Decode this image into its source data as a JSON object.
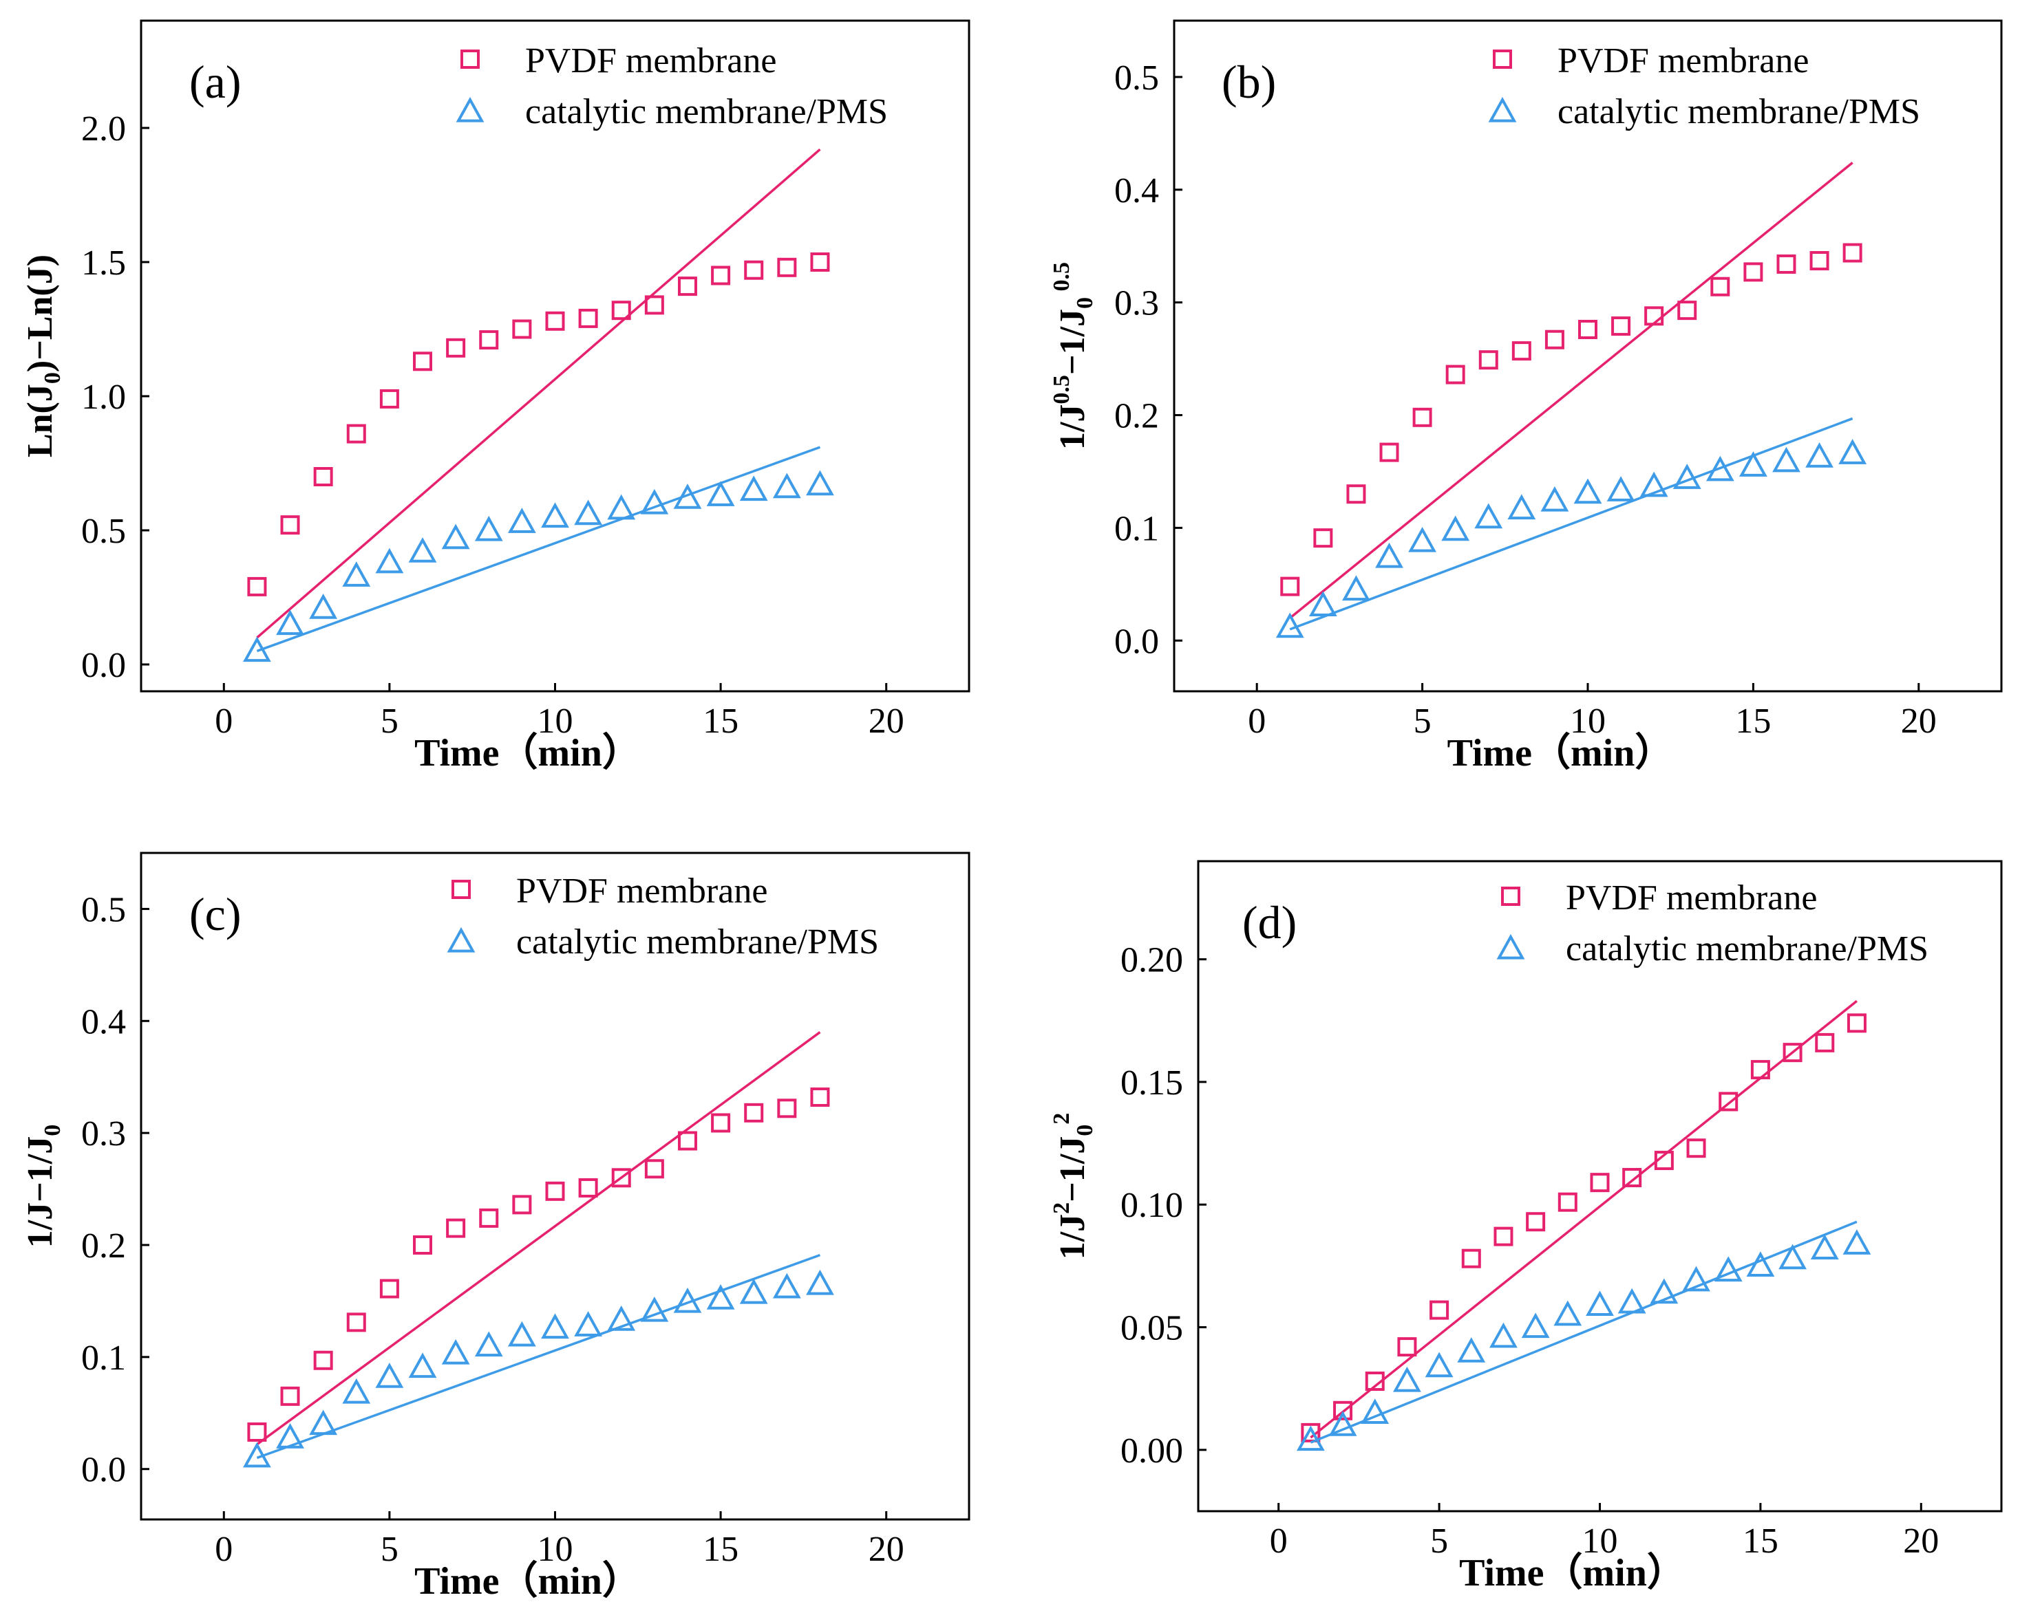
{
  "colors": {
    "pvdf": "#E6226E",
    "catalytic": "#3E9BE8"
  },
  "chart_data": [
    {
      "type": "scatter",
      "panel_label": "(a)",
      "xlabel": "Time（min）",
      "ylabel": "Ln(J0)−Ln(J)",
      "xlim": [
        -2.5,
        22.5
      ],
      "ylim": [
        -0.1,
        2.4
      ],
      "xticks": [
        "0",
        "5",
        "10",
        "15",
        "20"
      ],
      "yticks": [
        "0.0",
        "0.5",
        "1.0",
        "1.5",
        "2.0"
      ],
      "x": [
        1,
        2,
        3,
        4,
        5,
        6,
        7,
        8,
        9,
        10,
        11,
        12,
        13,
        14,
        15,
        16,
        17,
        18
      ],
      "series": [
        {
          "name": "PVDF membrane",
          "marker": "square",
          "values": [
            0.29,
            0.52,
            0.7,
            0.86,
            0.99,
            1.13,
            1.18,
            1.21,
            1.25,
            1.28,
            1.29,
            1.32,
            1.34,
            1.41,
            1.45,
            1.47,
            1.48,
            1.5
          ],
          "fit": [
            [
              1,
              0.1
            ],
            [
              18,
              1.92
            ]
          ]
        },
        {
          "name": "catalytic membrane/PMS",
          "marker": "triangle",
          "values": [
            0.05,
            0.15,
            0.21,
            0.33,
            0.38,
            0.42,
            0.47,
            0.5,
            0.53,
            0.55,
            0.56,
            0.58,
            0.6,
            0.62,
            0.63,
            0.65,
            0.66,
            0.67
          ],
          "fit": [
            [
              1,
              0.05
            ],
            [
              18,
              0.81
            ]
          ]
        }
      ]
    },
    {
      "type": "scatter",
      "panel_label": "(b)",
      "xlabel": "Time（min）",
      "ylabel": "1/J0.5−1/J0 0.5",
      "xlim": [
        -2.5,
        22.5
      ],
      "ylim": [
        -0.045,
        0.55
      ],
      "xticks": [
        "0",
        "5",
        "10",
        "15",
        "20"
      ],
      "yticks": [
        "0.0",
        "0.1",
        "0.2",
        "0.3",
        "0.4",
        "0.5"
      ],
      "x": [
        1,
        2,
        3,
        4,
        5,
        6,
        7,
        8,
        9,
        10,
        11,
        12,
        13,
        14,
        15,
        16,
        17,
        18
      ],
      "series": [
        {
          "name": "PVDF membrane",
          "marker": "square",
          "values": [
            0.048,
            0.091,
            0.13,
            0.167,
            0.198,
            0.236,
            0.249,
            0.257,
            0.267,
            0.276,
            0.279,
            0.288,
            0.293,
            0.314,
            0.327,
            0.334,
            0.337,
            0.344
          ],
          "fit": [
            [
              1,
              0.02
            ],
            [
              18,
              0.424
            ]
          ]
        },
        {
          "name": "catalytic membrane/PMS",
          "marker": "triangle",
          "values": [
            0.012,
            0.031,
            0.045,
            0.074,
            0.088,
            0.098,
            0.109,
            0.117,
            0.124,
            0.131,
            0.133,
            0.137,
            0.144,
            0.151,
            0.155,
            0.159,
            0.163,
            0.166
          ],
          "fit": [
            [
              1,
              0.01
            ],
            [
              18,
              0.197
            ]
          ]
        }
      ]
    },
    {
      "type": "scatter",
      "panel_label": "(c)",
      "xlabel": "Time（min）",
      "ylabel": "1/J−1/J0",
      "xlim": [
        -2.5,
        22.5
      ],
      "ylim": [
        -0.045,
        0.55
      ],
      "xticks": [
        "0",
        "5",
        "10",
        "15",
        "20"
      ],
      "yticks": [
        "0.0",
        "0.1",
        "0.2",
        "0.3",
        "0.4",
        "0.5"
      ],
      "x": [
        1,
        2,
        3,
        4,
        5,
        6,
        7,
        8,
        9,
        10,
        11,
        12,
        13,
        14,
        15,
        16,
        17,
        18
      ],
      "series": [
        {
          "name": "PVDF membrane",
          "marker": "square",
          "values": [
            0.033,
            0.065,
            0.097,
            0.131,
            0.161,
            0.2,
            0.215,
            0.224,
            0.236,
            0.248,
            0.251,
            0.26,
            0.268,
            0.293,
            0.309,
            0.318,
            0.322,
            0.332
          ],
          "fit": [
            [
              1,
              0.022
            ],
            [
              18,
              0.39
            ]
          ]
        },
        {
          "name": "catalytic membrane/PMS",
          "marker": "triangle",
          "values": [
            0.011,
            0.028,
            0.04,
            0.068,
            0.082,
            0.091,
            0.103,
            0.11,
            0.119,
            0.126,
            0.128,
            0.133,
            0.141,
            0.149,
            0.152,
            0.157,
            0.162,
            0.165
          ],
          "fit": [
            [
              1,
              0.01
            ],
            [
              18,
              0.191
            ]
          ]
        }
      ]
    },
    {
      "type": "scatter",
      "panel_label": "(d)",
      "xlabel": "Time（min）",
      "ylabel": "1/J2−1/J0 2",
      "xlim": [
        -2.5,
        22.5
      ],
      "ylim": [
        -0.025,
        0.24
      ],
      "xticks": [
        "0",
        "5",
        "10",
        "15",
        "20"
      ],
      "yticks": [
        "0.00",
        "0.05",
        "0.10",
        "0.15",
        "0.20"
      ],
      "x": [
        1,
        2,
        3,
        4,
        5,
        6,
        7,
        8,
        9,
        10,
        11,
        12,
        13,
        14,
        15,
        16,
        17,
        18
      ],
      "series": [
        {
          "name": "PVDF membrane",
          "marker": "square",
          "values": [
            0.007,
            0.016,
            0.028,
            0.042,
            0.057,
            0.078,
            0.087,
            0.093,
            0.101,
            0.109,
            0.111,
            0.118,
            0.123,
            0.142,
            0.155,
            0.162,
            0.166,
            0.174
          ],
          "fit": [
            [
              1,
              0.005
            ],
            [
              18,
              0.183
            ]
          ]
        },
        {
          "name": "catalytic membrane/PMS",
          "marker": "triangle",
          "values": [
            0.004,
            0.01,
            0.015,
            0.028,
            0.034,
            0.04,
            0.046,
            0.05,
            0.055,
            0.059,
            0.06,
            0.064,
            0.069,
            0.073,
            0.075,
            0.078,
            0.082,
            0.084
          ],
          "fit": [
            [
              1,
              0.003
            ],
            [
              18,
              0.093
            ]
          ]
        }
      ]
    }
  ]
}
